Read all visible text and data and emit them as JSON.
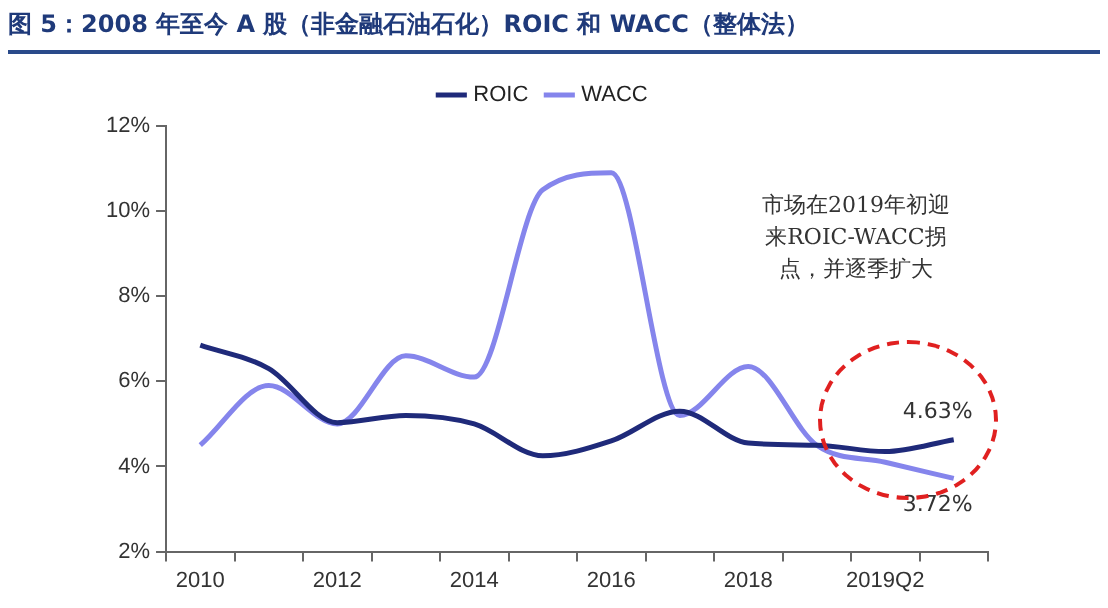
{
  "chart_data": {
    "type": "line",
    "title": "图 5：2008 年至今 A 股（非金融石油石化）ROIC 和 WACC（整体法）",
    "categories": [
      "2010",
      null,
      "2012",
      null,
      "2014",
      null,
      "2016",
      null,
      "2018",
      null,
      "2019Q2",
      null
    ],
    "series": [
      {
        "name": "ROIC",
        "color": "#1f2a7a",
        "values": [
          6.85,
          6.3,
          5.03,
          5.2,
          5.0,
          4.25,
          4.6,
          5.3,
          4.55,
          4.5,
          4.35,
          4.63
        ],
        "value_labels": [
          null,
          null,
          null,
          null,
          null,
          null,
          null,
          null,
          null,
          null,
          null,
          "4.63%"
        ]
      },
      {
        "name": "WACC",
        "color": "#8585ec",
        "values": [
          4.5,
          5.9,
          5.0,
          6.6,
          6.1,
          10.5,
          10.9,
          5.2,
          6.35,
          4.5,
          4.1,
          3.72
        ],
        "value_labels": [
          null,
          null,
          null,
          null,
          null,
          null,
          null,
          null,
          null,
          null,
          null,
          "3.72%"
        ]
      }
    ],
    "ylim": [
      2,
      12
    ],
    "yticks": [
      {
        "value": 2,
        "label": "2%"
      },
      {
        "value": 4,
        "label": "4%"
      },
      {
        "value": 6,
        "label": "6%"
      },
      {
        "value": 8,
        "label": "8%"
      },
      {
        "value": 10,
        "label": "10%"
      },
      {
        "value": 12,
        "label": "12%"
      }
    ],
    "annotations": [
      "市场在2019年初迎来ROIC-WACC拐点，并逐季扩大"
    ],
    "grid": false,
    "legend": "top",
    "marker": "none",
    "line_style": "solid"
  }
}
